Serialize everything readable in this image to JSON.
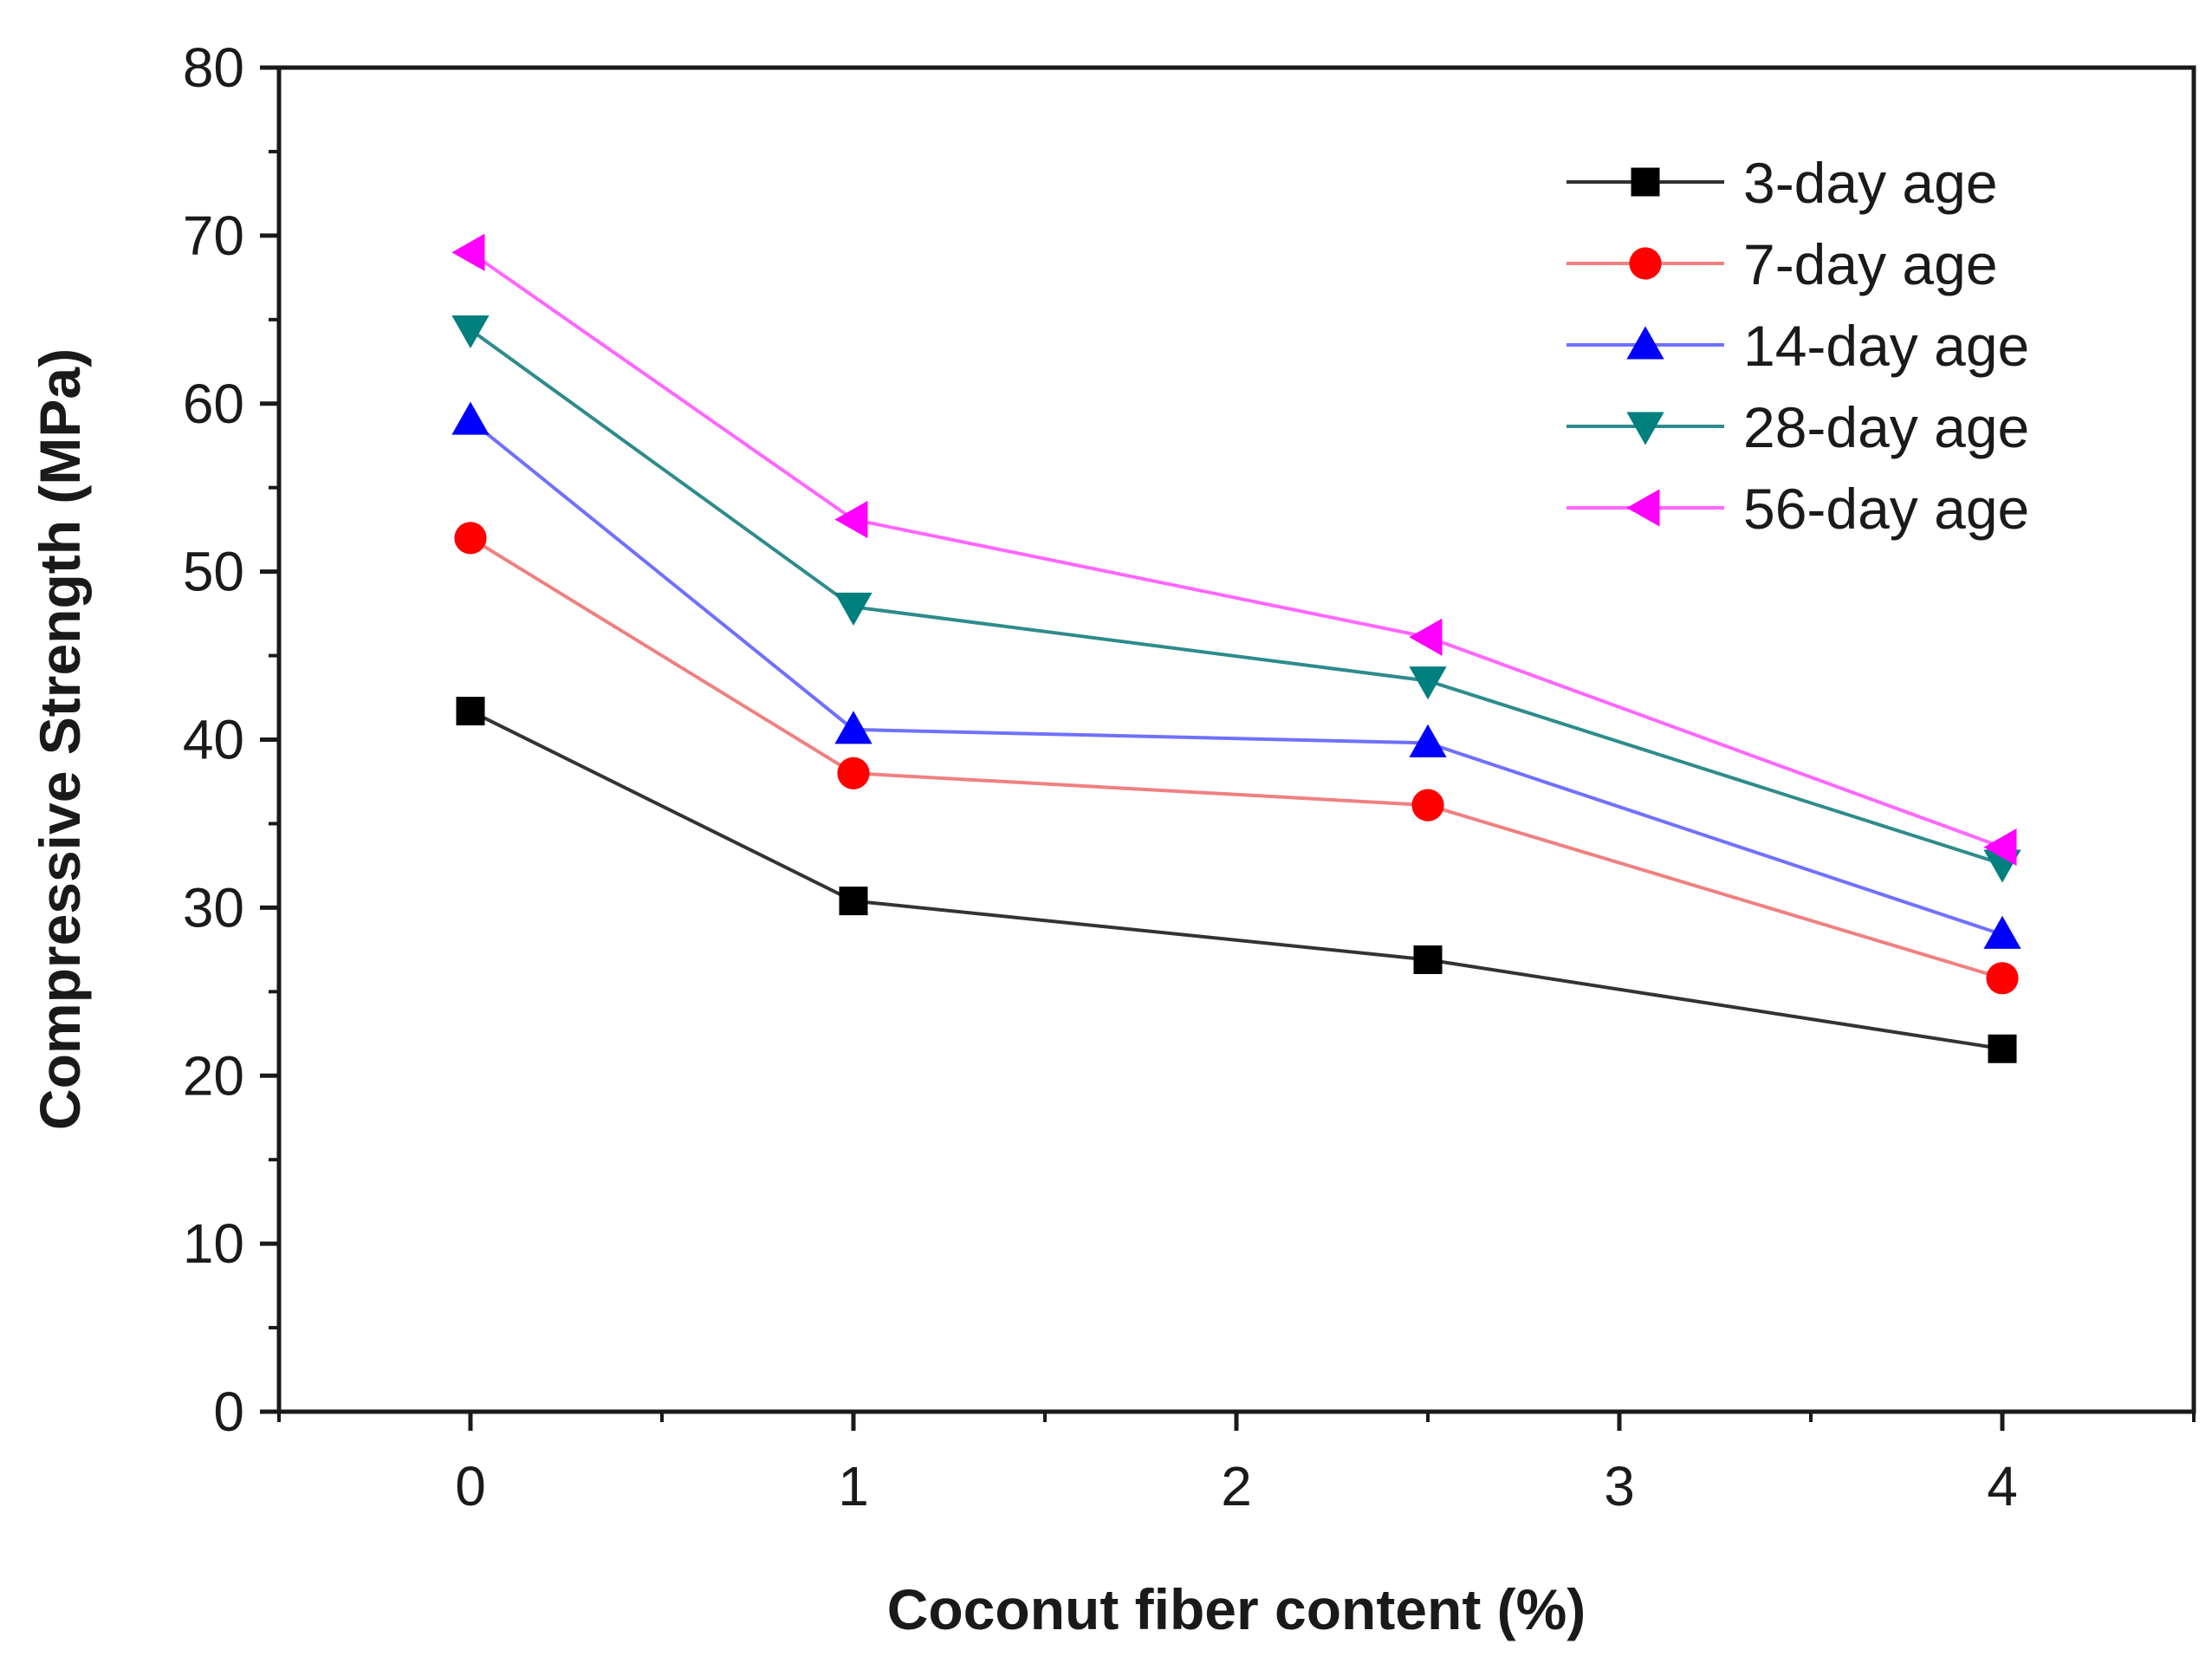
{
  "chart_data": {
    "type": "line",
    "title": "",
    "xlabel": "Coconut fiber content (%)",
    "ylabel": "Compressive Strength (MPa)",
    "xlim": [
      -0.5,
      4.5
    ],
    "ylim": [
      0,
      80
    ],
    "x_ticks": [
      0,
      1,
      2,
      3,
      4
    ],
    "x_tick_labels": [
      "0",
      "1",
      "2",
      "3",
      "4"
    ],
    "y_ticks": [
      0,
      10,
      20,
      30,
      40,
      50,
      60,
      70,
      80
    ],
    "y_tick_labels": [
      "0",
      "10",
      "20",
      "30",
      "40",
      "50",
      "60",
      "70",
      "80"
    ],
    "grid": false,
    "legend_position": "top-right",
    "x": [
      0,
      1,
      2.5,
      4
    ],
    "series": [
      {
        "name": "3-day age",
        "values": [
          41.7,
          30.4,
          26.9,
          21.6
        ],
        "color": "#000000",
        "marker": "square"
      },
      {
        "name": "7-day age",
        "values": [
          52.0,
          38.0,
          36.1,
          25.8
        ],
        "color": "#ff0000",
        "marker": "circle"
      },
      {
        "name": "14-day age",
        "values": [
          59.0,
          40.6,
          39.8,
          28.4
        ],
        "color": "#0000ff",
        "marker": "triangle-up"
      },
      {
        "name": "28-day age",
        "values": [
          64.4,
          47.9,
          43.5,
          32.6
        ],
        "color": "#007f7f",
        "marker": "triangle-down"
      },
      {
        "name": "56-day age",
        "values": [
          69.0,
          53.1,
          46.1,
          33.6
        ],
        "color": "#ff00ff",
        "marker": "triangle-left"
      }
    ],
    "line_colors": [
      "#333333",
      "#f08080",
      "#7070ff",
      "#2e8b8b",
      "#ff66ff"
    ]
  }
}
